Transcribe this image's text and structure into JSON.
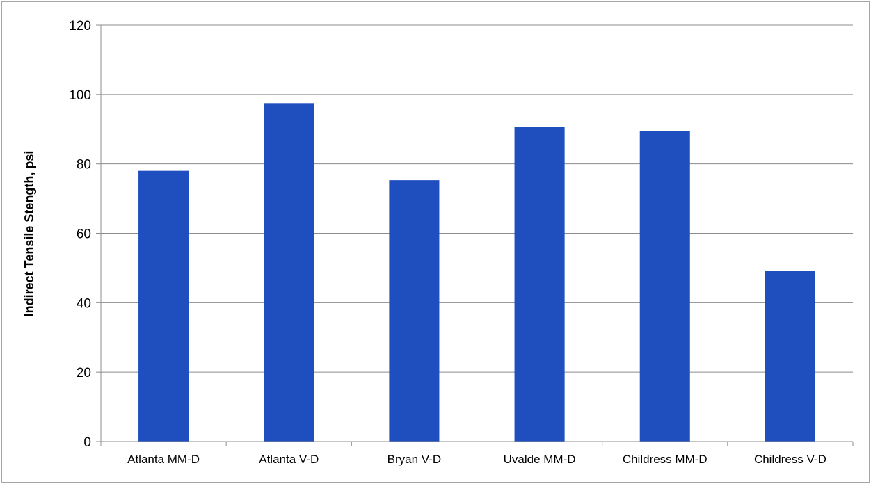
{
  "chart_data": {
    "type": "bar",
    "title": "",
    "xlabel": "",
    "ylabel": "Indirect Tensile Stength, psi",
    "categories": [
      "Atlanta MM-D",
      "Atlanta V-D",
      "Bryan V-D",
      "Uvalde MM-D",
      "Childress MM-D",
      "Childress V-D"
    ],
    "values": [
      78,
      97.5,
      75.3,
      90.6,
      89.4,
      49.1
    ],
    "ylim": [
      0,
      120
    ],
    "yticks": [
      0,
      20,
      40,
      60,
      80,
      100,
      120
    ],
    "grid": true,
    "legend": "none",
    "bar_color": "#1f4fbf",
    "grid_color": "#8c8c8c"
  }
}
